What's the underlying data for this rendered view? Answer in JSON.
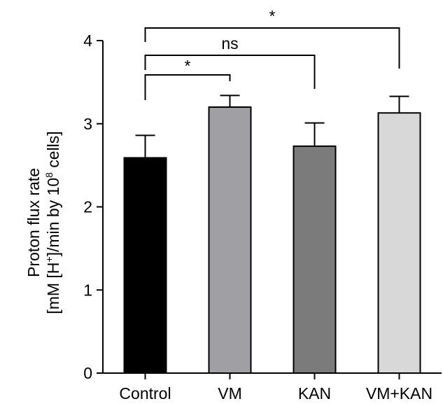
{
  "chart_data": {
    "type": "bar",
    "categories": [
      "Control",
      "VM",
      "KAN",
      "VM+KAN"
    ],
    "values": [
      2.59,
      3.2,
      2.73,
      3.13
    ],
    "errors": [
      0.27,
      0.14,
      0.28,
      0.2
    ],
    "bar_colors": [
      "#000000",
      "#a0a0a4",
      "#7b7b7b",
      "#d8d8d8"
    ],
    "ylabel_line1": "Proton flux rate",
    "ylabel_line2_prefix": "[mM [H",
    "ylabel_line2_sup1": "+",
    "ylabel_line2_mid": "]/min by 10",
    "ylabel_line2_sup2": "8",
    "ylabel_line2_suffix": " cells]",
    "ylim": [
      0,
      4
    ],
    "yticks": [
      0,
      1,
      2,
      3,
      4
    ],
    "grid": false,
    "significance": [
      {
        "from": "Control",
        "to": "VM",
        "label": "*"
      },
      {
        "from": "Control",
        "to": "KAN",
        "label": "ns"
      },
      {
        "from": "Control",
        "to": "VM+KAN",
        "label": "*"
      }
    ]
  }
}
